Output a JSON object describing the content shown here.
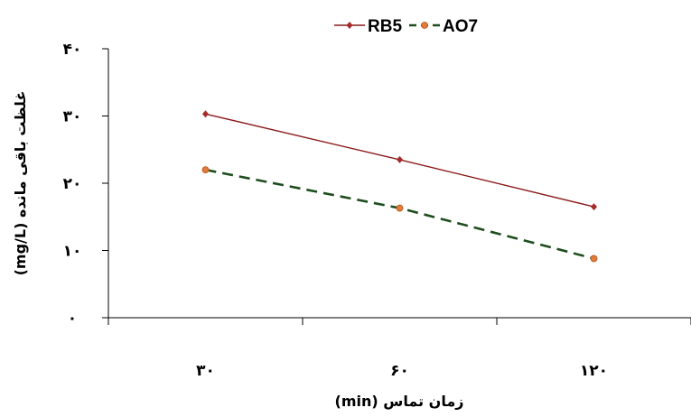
{
  "chart_data": {
    "type": "line",
    "categories": [
      "۳۰",
      "۶۰",
      "۱۲۰"
    ],
    "y_ticks": [
      "۰",
      "۱۰",
      "۲۰",
      "۳۰",
      "۴۰"
    ],
    "y_tick_values": [
      0,
      10,
      20,
      30,
      40
    ],
    "ylim": [
      0,
      40
    ],
    "xlabel": "(min) زمان تماس",
    "ylabel": "(mg/L) غلظت باقی مانده",
    "legend_position": "top",
    "grid": false,
    "series": [
      {
        "name": "RB5",
        "values": [
          30.3,
          23.5,
          16.5
        ],
        "color": "#8b1a1a",
        "marker_color": "#a52a2a",
        "dashed": false
      },
      {
        "name": "AO7",
        "values": [
          22.0,
          16.3,
          8.8
        ],
        "color": "#1e4d1e",
        "marker_color": "#e07b39",
        "dashed": true
      }
    ]
  }
}
